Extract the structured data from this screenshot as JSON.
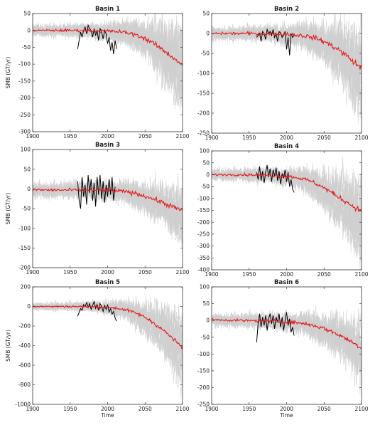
{
  "figure": {
    "background": "#ffffff",
    "ensemble_color": "#cfcfcf",
    "mean_color": "#e31a1c",
    "observed_color": "#000000",
    "ylabel": "SMB (GT/yr)",
    "xlabel": "Time"
  },
  "chart_data": [
    {
      "type": "line",
      "title": "Basin 1",
      "xlim": [
        1900,
        2100
      ],
      "ylim": [
        -300,
        50
      ],
      "xticks": [
        1900,
        1950,
        2000,
        2050,
        2100
      ],
      "yticks": [
        50,
        0,
        -50,
        -100,
        -150,
        -200,
        -250,
        -300
      ],
      "ylabel": "SMB (GT/yr)",
      "xlabel": "",
      "grid": false,
      "series": [
        {
          "role": "model_mean",
          "color": "#e31a1c",
          "x": [
            1900,
            1920,
            1940,
            1960,
            1980,
            2000,
            2010,
            2020,
            2030,
            2040,
            2050,
            2060,
            2070,
            2080,
            2090,
            2100
          ],
          "y": [
            0,
            0,
            0,
            0,
            -1,
            -2,
            -3,
            -5,
            -9,
            -15,
            -24,
            -36,
            -52,
            -68,
            -85,
            -102
          ]
        },
        {
          "role": "observed",
          "color": "#000000",
          "x": [
            1960,
            1962,
            1964,
            1966,
            1968,
            1970,
            1972,
            1974,
            1976,
            1978,
            1980,
            1982,
            1984,
            1986,
            1988,
            1990,
            1992,
            1994,
            1996,
            1998,
            2000,
            2002,
            2004,
            2006,
            2008,
            2010,
            2012
          ],
          "y": [
            -55,
            -30,
            -5,
            -20,
            0,
            10,
            -10,
            15,
            5,
            0,
            -20,
            5,
            -15,
            0,
            -30,
            5,
            -5,
            -25,
            0,
            -10,
            -40,
            -20,
            -60,
            -35,
            -70,
            -30,
            -55
          ]
        },
        {
          "role": "ensemble",
          "color": "#cfcfcf",
          "members": 24,
          "spread_start": 30,
          "spread_end": 175
        }
      ]
    },
    {
      "type": "line",
      "title": "Basin 2",
      "xlim": [
        1900,
        2100
      ],
      "ylim": [
        -250,
        50
      ],
      "xticks": [
        1900,
        1950,
        2000,
        2050,
        2100
      ],
      "yticks": [
        50,
        0,
        -50,
        -100,
        -150,
        -200,
        -250
      ],
      "ylabel": "",
      "xlabel": "",
      "grid": false,
      "series": [
        {
          "role": "model_mean",
          "color": "#e31a1c",
          "x": [
            1900,
            1920,
            1940,
            1960,
            1980,
            2000,
            2010,
            2020,
            2030,
            2040,
            2050,
            2060,
            2070,
            2080,
            2090,
            2100
          ],
          "y": [
            0,
            0,
            0,
            0,
            -1,
            -2,
            -3,
            -5,
            -8,
            -13,
            -20,
            -30,
            -42,
            -56,
            -72,
            -88
          ]
        },
        {
          "role": "observed",
          "color": "#000000",
          "x": [
            1960,
            1962,
            1964,
            1966,
            1968,
            1970,
            1972,
            1974,
            1976,
            1978,
            1980,
            1982,
            1984,
            1986,
            1988,
            1990,
            1992,
            1994,
            1996,
            1998,
            2000,
            2002,
            2004,
            2006,
            2008,
            2010
          ],
          "y": [
            -10,
            -5,
            0,
            -20,
            5,
            0,
            -15,
            10,
            0,
            5,
            -5,
            10,
            -10,
            0,
            -20,
            5,
            0,
            -10,
            -5,
            5,
            -40,
            -10,
            -55,
            0,
            -10,
            -5
          ]
        },
        {
          "role": "ensemble",
          "color": "#cfcfcf",
          "members": 24,
          "spread_start": 30,
          "spread_end": 160
        }
      ]
    },
    {
      "type": "line",
      "title": "Basin 3",
      "xlim": [
        1900,
        2100
      ],
      "ylim": [
        -200,
        100
      ],
      "xticks": [
        1900,
        1950,
        2000,
        2050,
        2100
      ],
      "yticks": [
        100,
        50,
        0,
        -50,
        -100,
        -150,
        -200
      ],
      "ylabel": "SMB (GT/yr)",
      "xlabel": "",
      "grid": false,
      "series": [
        {
          "role": "model_mean",
          "color": "#e31a1c",
          "x": [
            1900,
            1920,
            1940,
            1960,
            1980,
            2000,
            2010,
            2020,
            2030,
            2040,
            2050,
            2060,
            2070,
            2080,
            2090,
            2100
          ],
          "y": [
            -2,
            -3,
            -3,
            -3,
            -3,
            -4,
            -5,
            -6,
            -9,
            -13,
            -18,
            -25,
            -32,
            -40,
            -48,
            -55
          ]
        },
        {
          "role": "observed",
          "color": "#000000",
          "x": [
            1960,
            1962,
            1964,
            1966,
            1968,
            1970,
            1972,
            1974,
            1976,
            1978,
            1980,
            1982,
            1984,
            1986,
            1988,
            1990,
            1992,
            1994,
            1996,
            1998,
            2000,
            2002,
            2004,
            2006,
            2008,
            2010
          ],
          "y": [
            20,
            -30,
            -50,
            30,
            -20,
            10,
            -40,
            35,
            -10,
            25,
            -30,
            15,
            -45,
            30,
            -15,
            35,
            -25,
            20,
            -35,
            10,
            -20,
            25,
            -15,
            30,
            -30,
            5
          ]
        },
        {
          "role": "ensemble",
          "color": "#cfcfcf",
          "members": 24,
          "spread_start": 35,
          "spread_end": 110
        }
      ]
    },
    {
      "type": "line",
      "title": "Basin 4",
      "xlim": [
        1900,
        2100
      ],
      "ylim": [
        -400,
        100
      ],
      "xticks": [
        1900,
        1950,
        2000,
        2050,
        2100
      ],
      "yticks": [
        100,
        50,
        0,
        -50,
        -100,
        -150,
        -200,
        -250,
        -300,
        -350,
        -400
      ],
      "ylabel": "",
      "xlabel": "",
      "grid": false,
      "series": [
        {
          "role": "model_mean",
          "color": "#e31a1c",
          "x": [
            1900,
            1920,
            1940,
            1960,
            1980,
            2000,
            2010,
            2020,
            2030,
            2040,
            2050,
            2060,
            2070,
            2080,
            2090,
            2100
          ],
          "y": [
            0,
            0,
            0,
            -1,
            -3,
            -6,
            -10,
            -16,
            -25,
            -38,
            -55,
            -75,
            -95,
            -115,
            -135,
            -155
          ]
        },
        {
          "role": "observed",
          "color": "#000000",
          "x": [
            1960,
            1962,
            1964,
            1966,
            1968,
            1970,
            1972,
            1974,
            1976,
            1978,
            1980,
            1982,
            1984,
            1986,
            1988,
            1990,
            1992,
            1994,
            1996,
            1998,
            2000,
            2002,
            2004,
            2006,
            2008,
            2010
          ],
          "y": [
            10,
            -20,
            35,
            -25,
            15,
            -35,
            10,
            40,
            -10,
            25,
            -30,
            20,
            -5,
            30,
            -25,
            15,
            -40,
            5,
            -15,
            20,
            -30,
            10,
            -50,
            -20,
            -60,
            -75
          ]
        },
        {
          "role": "ensemble",
          "color": "#cfcfcf",
          "members": 24,
          "spread_start": 45,
          "spread_end": 230
        }
      ]
    },
    {
      "type": "line",
      "title": "Basin 5",
      "xlim": [
        1900,
        2100
      ],
      "ylim": [
        -1000,
        200
      ],
      "xticks": [
        1900,
        1950,
        2000,
        2050,
        2100
      ],
      "yticks": [
        200,
        0,
        -200,
        -400,
        -600,
        -800,
        -1000
      ],
      "ylabel": "SMB (GT/yr)",
      "xlabel": "Time",
      "grid": false,
      "series": [
        {
          "role": "model_mean",
          "color": "#e31a1c",
          "x": [
            1900,
            1920,
            1940,
            1960,
            1980,
            2000,
            2010,
            2020,
            2030,
            2040,
            2050,
            2060,
            2070,
            2080,
            2090,
            2100
          ],
          "y": [
            0,
            0,
            0,
            0,
            -2,
            -8,
            -15,
            -28,
            -48,
            -75,
            -110,
            -160,
            -215,
            -280,
            -350,
            -420
          ]
        },
        {
          "role": "observed",
          "color": "#000000",
          "x": [
            1960,
            1962,
            1964,
            1966,
            1968,
            1970,
            1972,
            1974,
            1976,
            1978,
            1980,
            1982,
            1984,
            1986,
            1988,
            1990,
            1992,
            1994,
            1996,
            1998,
            2000,
            2002,
            2004,
            2006,
            2008,
            2010,
            2012
          ],
          "y": [
            -100,
            -60,
            -20,
            -40,
            20,
            0,
            40,
            -10,
            30,
            -30,
            10,
            50,
            -20,
            20,
            -40,
            30,
            0,
            -50,
            10,
            -30,
            20,
            -60,
            -20,
            -80,
            -50,
            -120,
            -150
          ]
        },
        {
          "role": "ensemble",
          "color": "#cfcfcf",
          "members": 24,
          "spread_start": 70,
          "spread_end": 520
        }
      ]
    },
    {
      "type": "line",
      "title": "Basin 6",
      "xlim": [
        1900,
        2100
      ],
      "ylim": [
        -250,
        100
      ],
      "xticks": [
        1900,
        1950,
        2000,
        2050,
        2100
      ],
      "yticks": [
        100,
        50,
        0,
        -50,
        -100,
        -150,
        -200,
        -250
      ],
      "ylabel": "",
      "xlabel": "Time",
      "grid": false,
      "series": [
        {
          "role": "model_mean",
          "color": "#e31a1c",
          "x": [
            1900,
            1920,
            1940,
            1960,
            1980,
            2000,
            2010,
            2020,
            2030,
            2040,
            2050,
            2060,
            2070,
            2080,
            2090,
            2100
          ],
          "y": [
            2,
            1,
            0,
            -1,
            -2,
            -4,
            -6,
            -8,
            -12,
            -17,
            -24,
            -33,
            -43,
            -55,
            -68,
            -82
          ]
        },
        {
          "role": "observed",
          "color": "#000000",
          "x": [
            1960,
            1962,
            1964,
            1966,
            1968,
            1970,
            1972,
            1974,
            1976,
            1978,
            1980,
            1982,
            1984,
            1986,
            1988,
            1990,
            1992,
            1994,
            1996,
            1998,
            2000,
            2002,
            2004,
            2006,
            2008,
            2010
          ],
          "y": [
            -65,
            -10,
            20,
            -20,
            10,
            -15,
            15,
            -30,
            5,
            20,
            -10,
            15,
            -25,
            10,
            -5,
            20,
            -20,
            10,
            -30,
            0,
            25,
            -15,
            5,
            -35,
            -20,
            -45
          ]
        },
        {
          "role": "ensemble",
          "color": "#cfcfcf",
          "members": 24,
          "spread_start": 35,
          "spread_end": 140
        }
      ]
    }
  ]
}
